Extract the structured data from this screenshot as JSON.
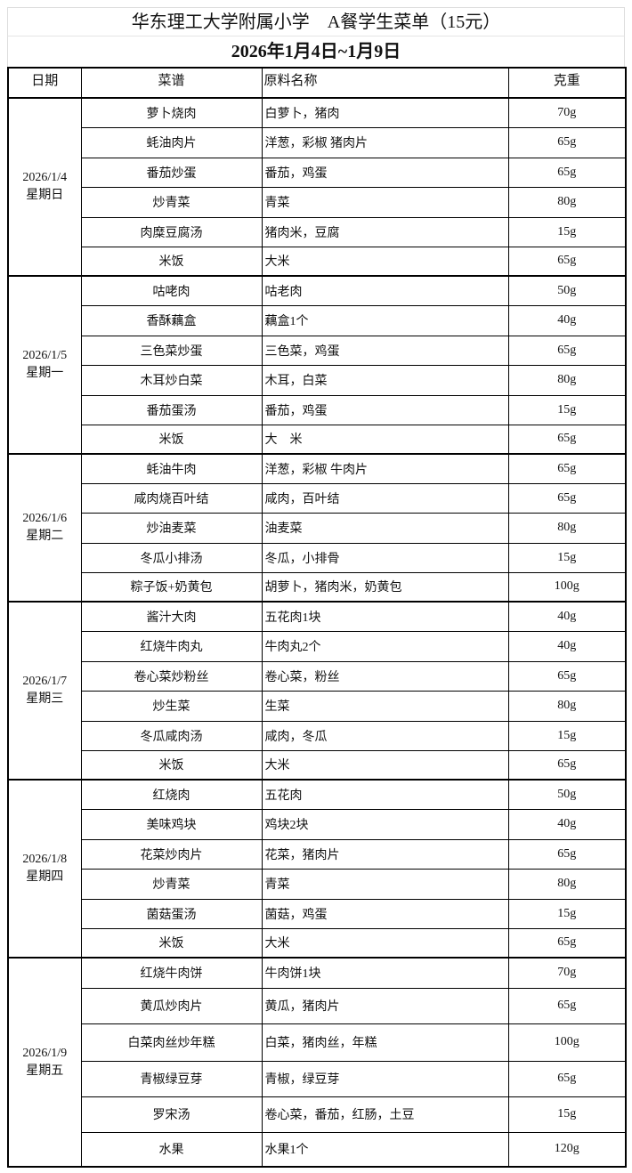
{
  "title": "华东理工大学附属小学　A餐学生菜单（15元）",
  "subtitle": "2026年1月4日~1月9日",
  "headers": {
    "date": "日期",
    "dish": "菜谱",
    "ingredients": "原料名称",
    "weight": "克重"
  },
  "days": [
    {
      "date": "2026/1/4",
      "weekday": "星期日",
      "items": [
        {
          "dish": "萝卜烧肉",
          "ingredients": "白萝卜，猪肉",
          "weight": "70g"
        },
        {
          "dish": "蚝油肉片",
          "ingredients": "洋葱，彩椒 猪肉片",
          "weight": "65g"
        },
        {
          "dish": "番茄炒蛋",
          "ingredients": "番茄，鸡蛋",
          "weight": "65g"
        },
        {
          "dish": "炒青菜",
          "ingredients": "青菜",
          "weight": "80g"
        },
        {
          "dish": "肉糜豆腐汤",
          "ingredients": "猪肉米，豆腐",
          "weight": "15g"
        },
        {
          "dish": "米饭",
          "ingredients": "大米",
          "weight": "65g"
        }
      ]
    },
    {
      "date": "2026/1/5",
      "weekday": "星期一",
      "items": [
        {
          "dish": "咕咾肉",
          "ingredients": "咕老肉",
          "weight": "50g"
        },
        {
          "dish": "香酥藕盒",
          "ingredients": "藕盒1个",
          "weight": "40g"
        },
        {
          "dish": "三色菜炒蛋",
          "ingredients": "三色菜，鸡蛋",
          "weight": "65g"
        },
        {
          "dish": "木耳炒白菜",
          "ingredients": "木耳，白菜",
          "weight": "80g"
        },
        {
          "dish": "番茄蛋汤",
          "ingredients": "番茄，鸡蛋",
          "weight": "15g"
        },
        {
          "dish": "米饭",
          "ingredients": "大　米",
          "weight": "65g"
        }
      ]
    },
    {
      "date": "2026/1/6",
      "weekday": "星期二",
      "items": [
        {
          "dish": "蚝油牛肉",
          "ingredients": "洋葱，彩椒 牛肉片",
          "weight": "65g"
        },
        {
          "dish": "咸肉烧百叶结",
          "ingredients": "咸肉，百叶结",
          "weight": "65g"
        },
        {
          "dish": "炒油麦菜",
          "ingredients": "油麦菜",
          "weight": "80g"
        },
        {
          "dish": "冬瓜小排汤",
          "ingredients": "冬瓜，小排骨",
          "weight": "15g"
        },
        {
          "dish": "粽子饭+奶黄包",
          "ingredients": "胡萝卜，猪肉米，奶黄包",
          "weight": "100g"
        }
      ]
    },
    {
      "date": "2026/1/7",
      "weekday": "星期三",
      "items": [
        {
          "dish": "酱汁大肉",
          "ingredients": "五花肉1块",
          "weight": "40g"
        },
        {
          "dish": "红烧牛肉丸",
          "ingredients": "牛肉丸2个",
          "weight": "40g"
        },
        {
          "dish": "卷心菜炒粉丝",
          "ingredients": "卷心菜，粉丝",
          "weight": "65g"
        },
        {
          "dish": "炒生菜",
          "ingredients": "生菜",
          "weight": "80g"
        },
        {
          "dish": "冬瓜咸肉汤",
          "ingredients": "咸肉，冬瓜",
          "weight": "15g"
        },
        {
          "dish": "米饭",
          "ingredients": "大米",
          "weight": "65g"
        }
      ]
    },
    {
      "date": "2026/1/8",
      "weekday": "星期四",
      "items": [
        {
          "dish": "红烧肉",
          "ingredients": "五花肉",
          "weight": "50g"
        },
        {
          "dish": "美味鸡块",
          "ingredients": "鸡块2块",
          "weight": "40g"
        },
        {
          "dish": "花菜炒肉片",
          "ingredients": "花菜，猪肉片",
          "weight": "65g"
        },
        {
          "dish": "炒青菜",
          "ingredients": "青菜",
          "weight": "80g"
        },
        {
          "dish": "菌菇蛋汤",
          "ingredients": "菌菇，鸡蛋",
          "weight": "15g"
        },
        {
          "dish": "米饭",
          "ingredients": "大米",
          "weight": "65g"
        }
      ]
    },
    {
      "date": "2026/1/9",
      "weekday": "星期五",
      "items": [
        {
          "dish": "红烧牛肉饼",
          "ingredients": "牛肉饼1块",
          "weight": "70g"
        },
        {
          "dish": "黄瓜炒肉片",
          "ingredients": "黄瓜，猪肉片",
          "weight": "65g"
        },
        {
          "dish": "白菜肉丝炒年糕",
          "ingredients": "白菜，猪肉丝，年糕",
          "weight": "100g"
        },
        {
          "dish": "青椒绿豆芽",
          "ingredients": "青椒，绿豆芽",
          "weight": "65g"
        },
        {
          "dish": "罗宋汤",
          "ingredients": "卷心菜，番茄，红肠，土豆",
          "weight": "15g"
        },
        {
          "dish": "水果",
          "ingredients": "水果1个",
          "weight": "120g"
        }
      ]
    }
  ]
}
